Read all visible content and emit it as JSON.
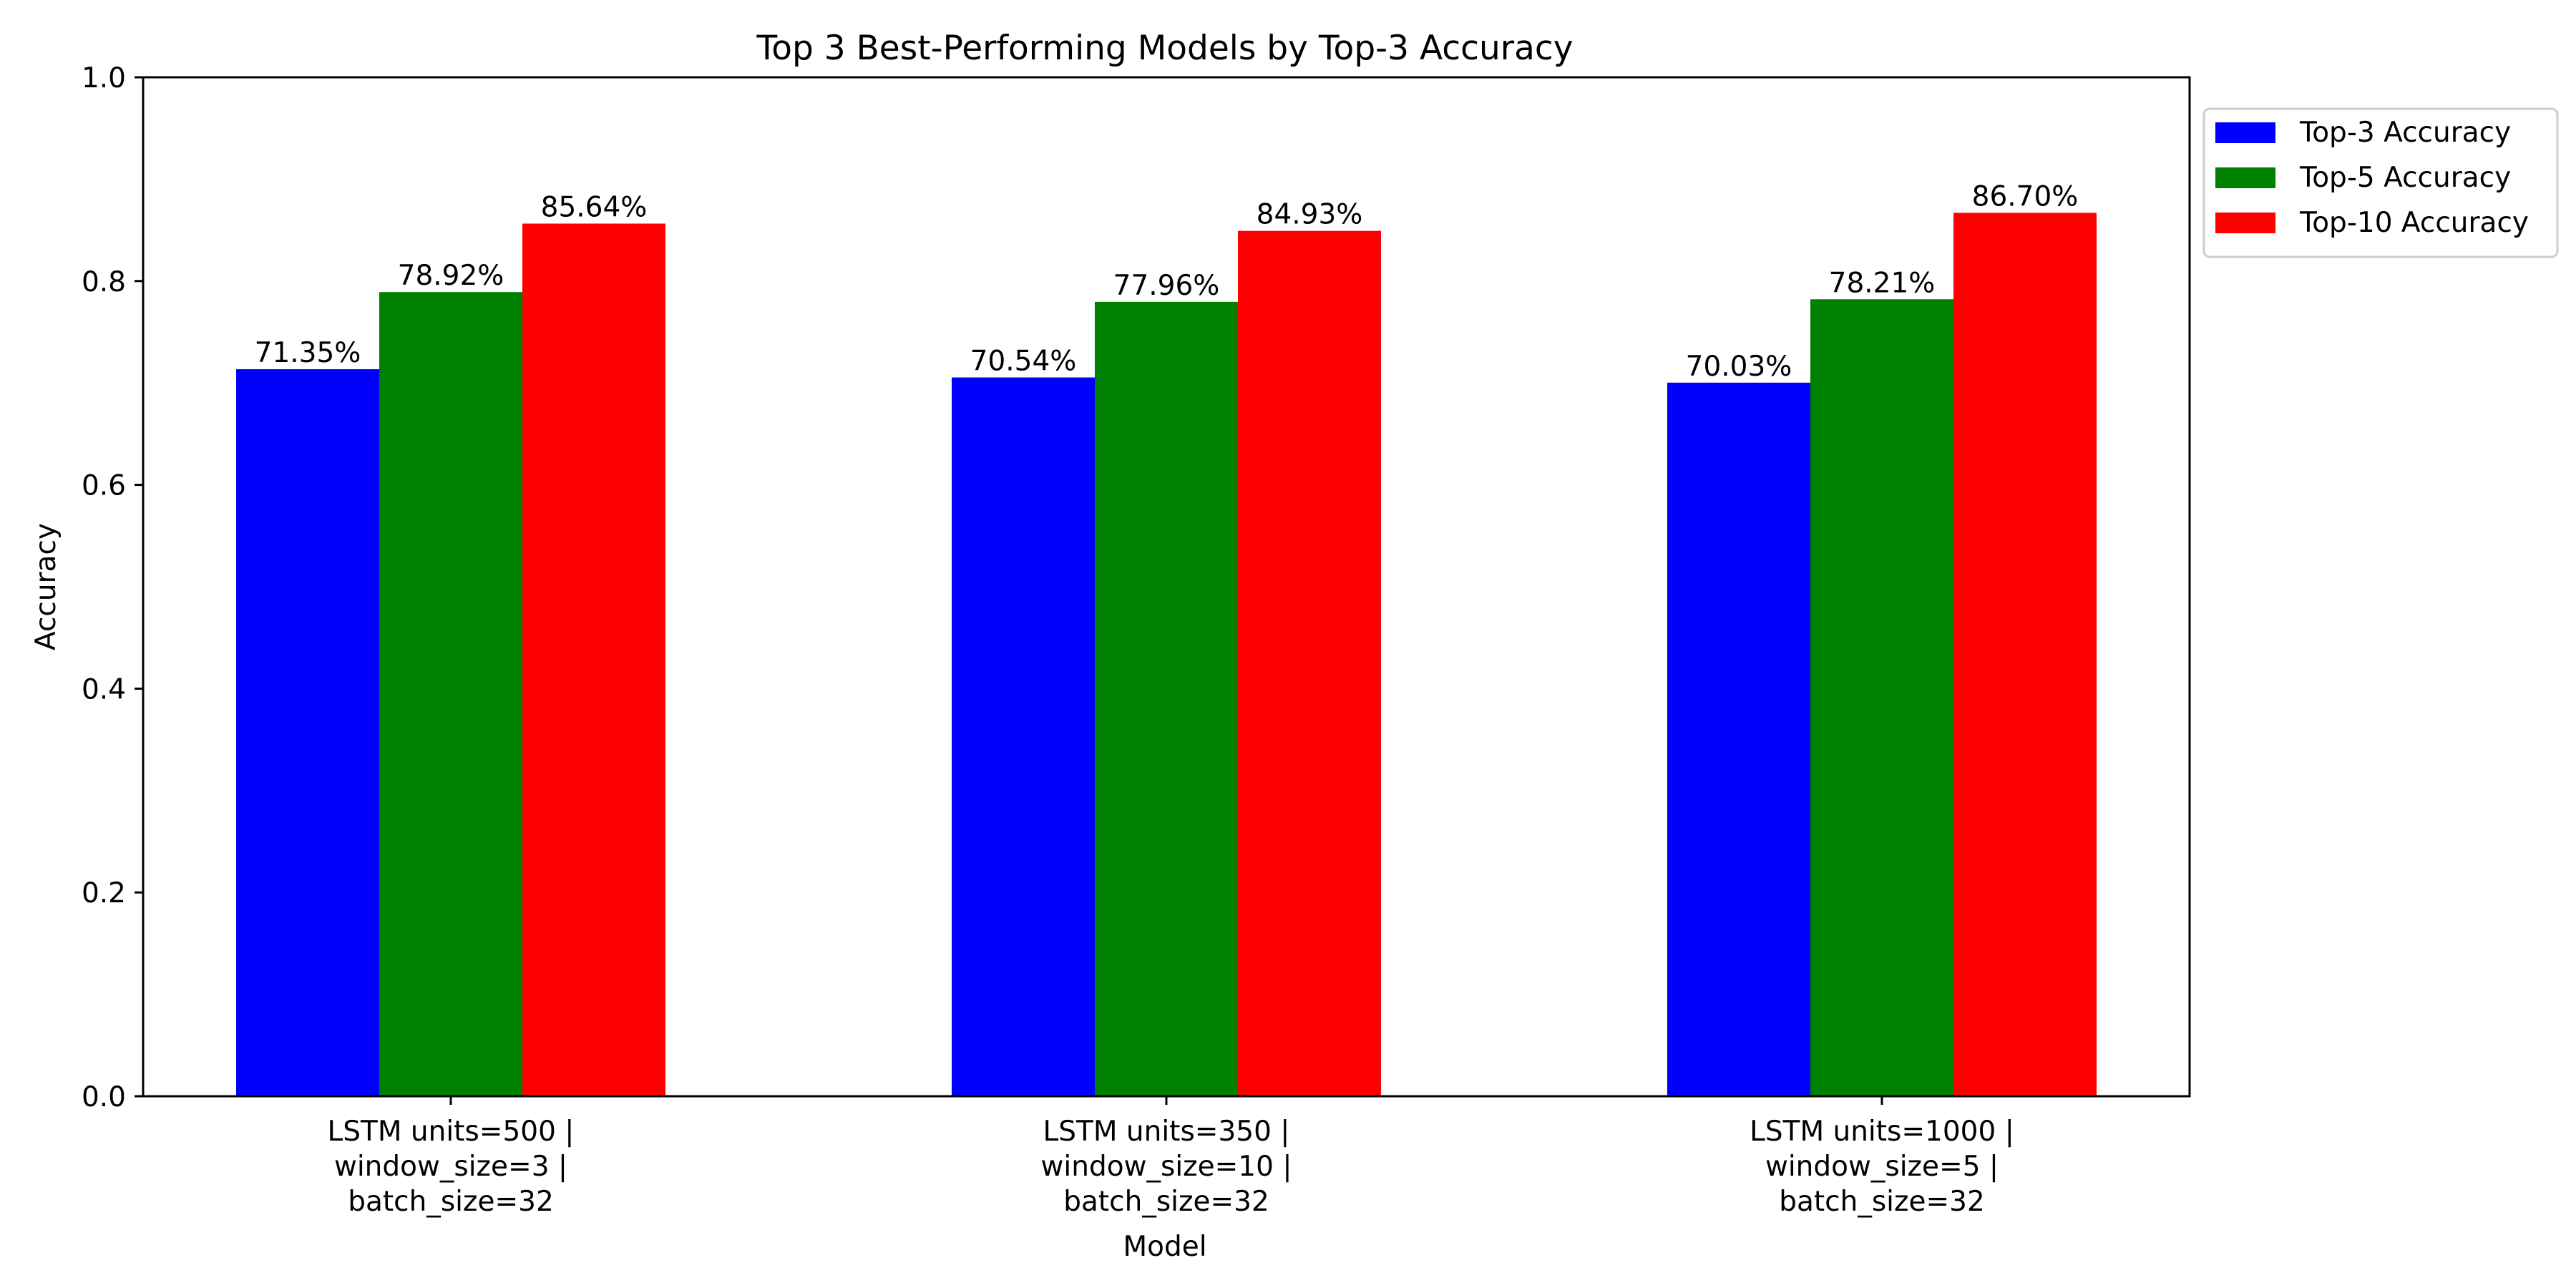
{
  "chart_data": {
    "type": "bar",
    "title": "Top 3 Best-Performing Models by Top-3 Accuracy",
    "xlabel": "Model",
    "ylabel": "Accuracy",
    "ylim": [
      0.0,
      1.0
    ],
    "yticks": [
      "0.0",
      "0.2",
      "0.4",
      "0.6",
      "0.8",
      "1.0"
    ],
    "categories": [
      [
        "LSTM units=500 |",
        "window_size=3 |",
        "batch_size=32"
      ],
      [
        "LSTM units=350 |",
        "window_size=10 |",
        "batch_size=32"
      ],
      [
        "LSTM units=1000 |",
        "window_size=5 |",
        "batch_size=32"
      ]
    ],
    "series": [
      {
        "name": "Top-3 Accuracy",
        "color": "#0000ff",
        "values": [
          0.7135,
          0.7054,
          0.7003
        ],
        "labels": [
          "71.35%",
          "70.54%",
          "70.03%"
        ]
      },
      {
        "name": "Top-5 Accuracy",
        "color": "#008000",
        "values": [
          0.7892,
          0.7796,
          0.7821
        ],
        "labels": [
          "78.92%",
          "77.96%",
          "78.21%"
        ]
      },
      {
        "name": "Top-10 Accuracy",
        "color": "#ff0000",
        "values": [
          0.8564,
          0.8493,
          0.867
        ],
        "labels": [
          "85.64%",
          "84.93%",
          "86.70%"
        ]
      }
    ],
    "grid": false,
    "legend_position": "upper right, outside plot"
  }
}
